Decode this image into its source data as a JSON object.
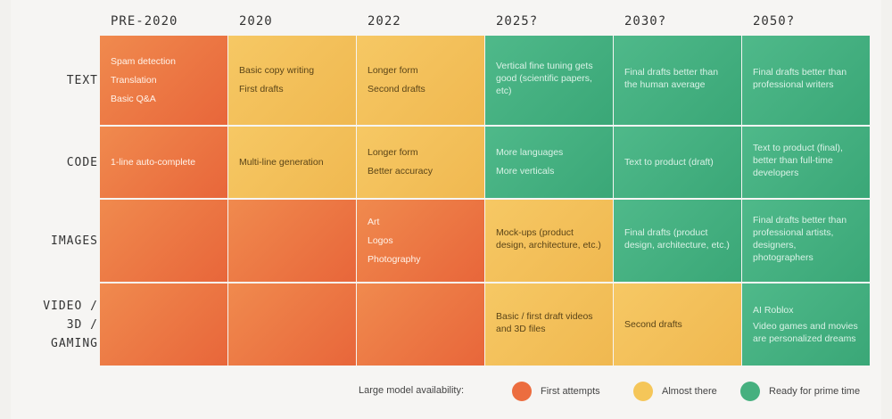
{
  "columns": [
    "PRE-2020",
    "2020",
    "2022",
    "2025?",
    "2030?",
    "2050?"
  ],
  "rows": [
    {
      "label": "TEXT",
      "cells": [
        {
          "status": "orange",
          "lines": [
            "Spam detection",
            "Translation",
            "Basic Q&A"
          ]
        },
        {
          "status": "yellow",
          "lines": [
            "Basic copy writing",
            "First drafts"
          ]
        },
        {
          "status": "yellow",
          "lines": [
            "Longer form",
            "Second drafts"
          ]
        },
        {
          "status": "green",
          "lines": [
            "Vertical fine tuning gets good (scientific papers, etc)"
          ]
        },
        {
          "status": "green",
          "lines": [
            "Final drafts better than the human average"
          ]
        },
        {
          "status": "green",
          "lines": [
            "Final drafts better than professional writers"
          ]
        }
      ]
    },
    {
      "label": "CODE",
      "cells": [
        {
          "status": "orange",
          "lines": [
            "1-line auto-complete"
          ]
        },
        {
          "status": "yellow",
          "lines": [
            "Multi-line generation"
          ]
        },
        {
          "status": "yellow",
          "lines": [
            "Longer form",
            "Better accuracy"
          ]
        },
        {
          "status": "green",
          "lines": [
            "More languages",
            "More verticals"
          ]
        },
        {
          "status": "green",
          "lines": [
            "Text to product (draft)"
          ]
        },
        {
          "status": "green",
          "lines": [
            "Text to product (final), better than full-time developers"
          ]
        }
      ]
    },
    {
      "label": "IMAGES",
      "cells": [
        {
          "status": "orange",
          "lines": []
        },
        {
          "status": "orange",
          "lines": []
        },
        {
          "status": "orange",
          "lines": [
            "Art",
            "Logos",
            "Photography"
          ]
        },
        {
          "status": "yellow",
          "lines": [
            "Mock-ups (product design, architecture, etc.)"
          ]
        },
        {
          "status": "green",
          "lines": [
            "Final drafts (product design, architecture, etc.)"
          ]
        },
        {
          "status": "green",
          "lines": [
            "Final drafts better than professional artists, designers, photographers"
          ]
        }
      ]
    },
    {
      "label": "VIDEO /\n3D /\nGAMING",
      "cells": [
        {
          "status": "orange",
          "lines": []
        },
        {
          "status": "orange",
          "lines": []
        },
        {
          "status": "orange",
          "lines": []
        },
        {
          "status": "yellow",
          "lines": [
            "Basic / first draft videos and 3D files"
          ]
        },
        {
          "status": "yellow",
          "lines": [
            "Second drafts"
          ]
        },
        {
          "status": "green",
          "lines": [
            "AI Roblox",
            "Video games and movies are personalized dreams"
          ]
        }
      ]
    }
  ],
  "legend": {
    "title": "Large model availability:",
    "items": [
      {
        "label": "First attempts",
        "color": "#ec6d3f"
      },
      {
        "label": "Almost there",
        "color": "#f5c659"
      },
      {
        "label": "Ready for prime time",
        "color": "#46b07f"
      }
    ]
  }
}
